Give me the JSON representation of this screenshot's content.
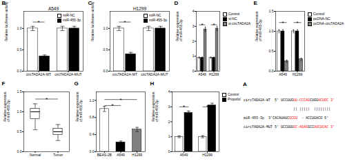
{
  "chart_data": [
    {
      "type": "text",
      "annotations": [
        {
          "text": "A"
        },
        {
          "segments": [
            {
              "text": "circTADA2A-WT  5' UCCUUG",
              "color": "black"
            },
            {
              "text": "UU",
              "color": "red"
            },
            {
              "text": "-",
              "color": "black"
            },
            {
              "text": "CCCAG",
              "color": "red"
            },
            {
              "text": "CUGG",
              "color": "black"
            },
            {
              "text": "ACUOC 3'",
              "color": "red"
            }
          ]
        },
        {
          "segments": [
            {
              "text": "|| |||||  ||||||||",
              "color": "black"
            }
          ]
        },
        {
          "segments": [
            {
              "text": "miR-455-3p  3'CACAUAUC",
              "color": "black"
            },
            {
              "text": "GCGU",
              "color": "red"
            },
            {
              "text": "  - ACCUGACG 5'",
              "color": "black"
            }
          ]
        },
        {
          "segments": [
            {
              "text": "circTADA2A-MUT 5' UCCUUG",
              "color": "black"
            },
            {
              "text": "GC-AGAG",
              "color": "red"
            },
            {
              "text": "GCC",
              "color": "black"
            },
            {
              "text": "AUCUCAC 3'",
              "color": "red"
            }
          ]
        }
      ]
    },
    {
      "type": "bar",
      "title": "A549",
      "ylabel": "Relative luciferase activity",
      "categories": [
        "circTADA2A-WT",
        "circTADA2A-MUT"
      ],
      "series": [
        {
          "name": "miR-NC",
          "color": "white",
          "values": [
            1.0,
            1.0
          ],
          "errors": [
            0.05,
            0.05
          ]
        },
        {
          "name": "miR-455-3p",
          "color": "black",
          "values": [
            0.35,
            1.0
          ],
          "errors": [
            0.03,
            0.05
          ]
        }
      ],
      "ylim": [
        0,
        1.4
      ],
      "yticks": [
        {
          "value": 0.0,
          "label": "0.0"
        },
        0.5,
        {
          "value": 1.0,
          "label": "1.0"
        }
      ],
      "legend": "upper right",
      "annotations": [
        {
          "text": "B"
        },
        {
          "text": "*",
          "category": "circTADA2A-WT",
          "from": "miR-NC",
          "to": "miR-455-3p",
          "y": 1.15
        }
      ]
    },
    {
      "type": "bar",
      "title": "H1299",
      "ylabel": "Relative luciferase activity",
      "categories": [
        "circTADA2A-WT",
        "circTADA2A-MUT"
      ],
      "series": [
        {
          "name": "miR-NC",
          "color": "white",
          "values": [
            1.0,
            1.0
          ],
          "errors": [
            0.05,
            0.05
          ]
        },
        {
          "name": "miR-455-3p",
          "color": "black",
          "values": [
            0.4,
            1.0
          ],
          "errors": [
            0.04,
            0.05
          ]
        }
      ],
      "ylim": [
        0,
        1.4
      ],
      "yticks": [
        {
          "value": 0.0,
          "label": "0.0"
        },
        0.5,
        {
          "value": 1.0,
          "label": "1.0"
        }
      ],
      "legend": "upper right",
      "annotations": [
        {
          "text": "C"
        },
        {
          "text": "*",
          "category": "circTADA2A-WT",
          "from": "miR-NC",
          "to": "miR-455-3p",
          "y": 1.15
        }
      ]
    },
    {
      "type": "bar",
      "ylabel": "Relative expression\nof miR-455-3p",
      "categories": [
        "A549",
        "H1299"
      ],
      "series": [
        {
          "name": "Control",
          "color": "white",
          "values": [
            0.9,
            0.9
          ],
          "errors": [
            0.05,
            0.05
          ]
        },
        {
          "name": "si-NC",
          "color": "black",
          "values": [
            0.9,
            0.9
          ],
          "errors": [
            0.05,
            0.05
          ]
        },
        {
          "name": "si-circTADA2A",
          "color": "#808080",
          "values": [
            2.8,
            2.85
          ],
          "errors": [
            0.15,
            0.15
          ]
        }
      ],
      "ylim": [
        0,
        4
      ],
      "yticks": [
        0,
        1,
        2,
        3,
        4
      ],
      "legend": "right",
      "annotations": [
        {
          "text": "D"
        },
        {
          "text": "*",
          "category": "A549",
          "from": "Control",
          "to": "si-circTADA2A",
          "y": 3.1
        },
        {
          "text": "*",
          "category": "H1299",
          "from": "Control",
          "to": "si-circTADA2A",
          "y": 3.1
        }
      ]
    },
    {
      "type": "bar",
      "ylabel": "Relative expression\nof miR-455-3p",
      "categories": [
        "A549",
        "H1299"
      ],
      "series": [
        {
          "name": "Control",
          "color": "white",
          "values": [
            1.0,
            1.0
          ],
          "errors": [
            0.04,
            0.04
          ]
        },
        {
          "name": "pcDNA-NC",
          "color": "black",
          "values": [
            1.0,
            1.0
          ],
          "errors": [
            0.04,
            0.04
          ]
        },
        {
          "name": "pcDNA-circTADA2A",
          "color": "#808080",
          "values": [
            0.25,
            0.3
          ],
          "errors": [
            0.03,
            0.03
          ]
        }
      ],
      "ylim": [
        0,
        1.5
      ],
      "yticks": [
        {
          "value": 0.0,
          "label": "0.0"
        },
        0.5,
        {
          "value": 1.0,
          "label": "1.0"
        },
        1.5
      ],
      "legend": "right",
      "annotations": [
        {
          "text": "E"
        },
        {
          "text": "*",
          "category": "A549",
          "from": "Control",
          "to": "pcDNA-circTADA2A",
          "y": 1.22
        },
        {
          "text": "*",
          "category": "H1299",
          "from": "Control",
          "to": "pcDNA-circTADA2A",
          "y": 1.22
        }
      ]
    },
    {
      "type": "box",
      "ylabel": "Relative expression\nof miR-455-3p",
      "categories": [
        "Normal",
        "Tumor"
      ],
      "boxes": [
        {
          "median": 1.0,
          "q1": 0.82,
          "q3": 1.08,
          "whislo": 0.55,
          "whishi": 1.2
        },
        {
          "median": 0.5,
          "q1": 0.42,
          "q3": 0.58,
          "whislo": 0.28,
          "whishi": 0.68
        }
      ],
      "ylim": [
        0,
        1.5
      ],
      "yticks": [
        {
          "value": 0.0,
          "label": "0.0"
        },
        0.5,
        {
          "value": 1.0,
          "label": "1.0"
        },
        1.5
      ],
      "annotations": [
        {
          "text": "F"
        },
        {
          "text": "*",
          "from": "Normal",
          "to": "Tumor",
          "y": 1.32
        }
      ]
    },
    {
      "type": "bar",
      "ylabel": "Relative expression\nof miR-455-3p",
      "categories": [
        "BEAS-2B",
        "A549",
        "H1299"
      ],
      "values": [
        1.0,
        0.22,
        0.52
      ],
      "errors": [
        0.06,
        0.03,
        0.05
      ],
      "colors": [
        "white",
        "black",
        "#808080"
      ],
      "ylim": [
        0,
        1.4
      ],
      "yticks": [
        {
          "value": 0.0,
          "label": "0.0"
        },
        0.4,
        0.8,
        1.2
      ],
      "annotations": [
        {
          "text": "G"
        },
        {
          "text": "*",
          "from": "BEAS-2B",
          "to": "A549",
          "y": 1.08
        },
        {
          "text": "*",
          "from": "BEAS-2B",
          "to": "H1299",
          "y": 1.22
        }
      ]
    },
    {
      "type": "bar",
      "ylabel": "Relative expression\nof miR-455-3p",
      "categories": [
        "A549",
        "H1299"
      ],
      "series": [
        {
          "name": "Control",
          "color": "white",
          "values": [
            1.0,
            1.0
          ],
          "errors": [
            0.06,
            0.07
          ]
        },
        {
          "name": "Propofol",
          "color": "black",
          "values": [
            2.6,
            3.1
          ],
          "errors": [
            0.12,
            0.14
          ]
        }
      ],
      "ylim": [
        0,
        4
      ],
      "yticks": [
        0,
        1,
        2,
        3,
        4
      ],
      "legend": "right",
      "annotations": [
        {
          "text": "H"
        },
        {
          "text": "*",
          "category": "A549",
          "from": "Control",
          "to": "Propofol",
          "y": 3.0
        },
        {
          "text": "*",
          "category": "H1299",
          "from": "Control",
          "to": "Propofol",
          "y": 3.0
        }
      ]
    }
  ]
}
